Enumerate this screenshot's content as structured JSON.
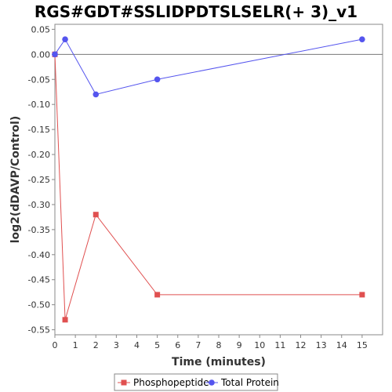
{
  "chart_data": {
    "type": "line",
    "title": "RGS#GDT#SSLIDPDTSLSELR(+ 3)_v1",
    "xlabel": "Time (minutes)",
    "ylabel": "log2(dDAVP/Control)",
    "xlim": [
      0,
      16
    ],
    "ylim": [
      -0.56,
      0.06
    ],
    "x_ticks": [
      0,
      1,
      2,
      3,
      4,
      5,
      6,
      7,
      8,
      9,
      10,
      11,
      12,
      13,
      14,
      15
    ],
    "y_ticks": [
      0.05,
      0.0,
      -0.05,
      -0.1,
      -0.15,
      -0.2,
      -0.25,
      -0.3,
      -0.35,
      -0.4,
      -0.45,
      -0.5,
      -0.55
    ],
    "y_tick_labels": [
      "0.05",
      "0.00",
      "-0.05",
      "-0.10",
      "-0.15",
      "-0.20",
      "-0.25",
      "-0.30",
      "-0.35",
      "-0.40",
      "-0.45",
      "-0.50",
      "-0.55"
    ],
    "reference_line_y": 0,
    "legend_position": "bottom",
    "series": [
      {
        "name": "Phosphopeptide",
        "color": "#e05050",
        "marker": "square",
        "x": [
          0,
          0.5,
          2,
          5,
          15
        ],
        "y": [
          0.0,
          -0.53,
          -0.32,
          -0.48,
          -0.48
        ]
      },
      {
        "name": "Total Protein",
        "color": "#5555ee",
        "marker": "circle",
        "x": [
          0,
          0.5,
          2,
          5,
          15
        ],
        "y": [
          0.0,
          0.03,
          -0.08,
          -0.05,
          0.03
        ]
      }
    ]
  }
}
